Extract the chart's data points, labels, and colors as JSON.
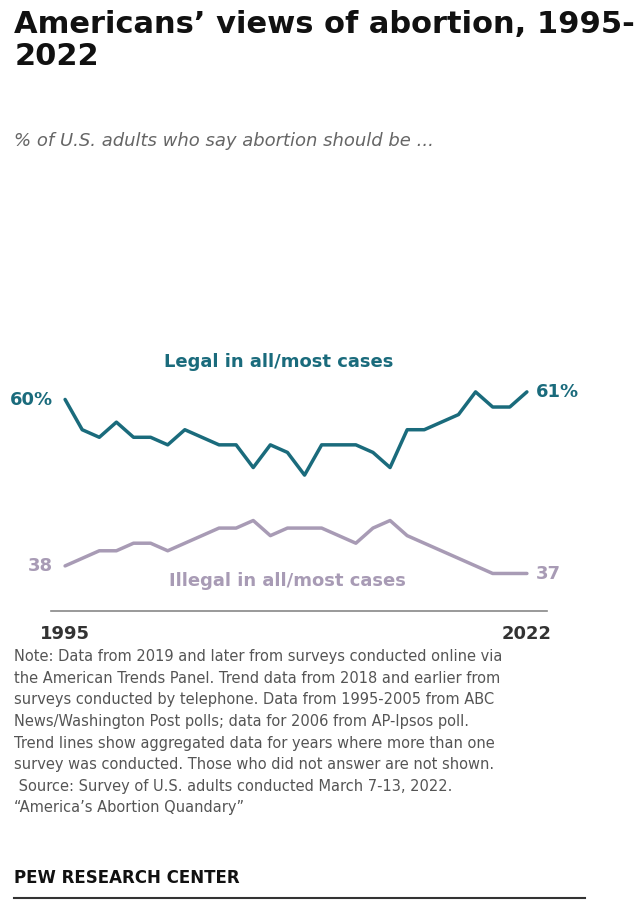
{
  "title": "Americans’ views of abortion, 1995-\n2022",
  "subtitle": "% of U.S. adults who say abortion should be ...",
  "legal_label": "Legal in all/most cases",
  "illegal_label": "Illegal in all/most cases",
  "legal_color": "#1a6b7c",
  "illegal_color": "#a89bb5",
  "legal_start_label": "60%",
  "legal_end_label": "61%",
  "illegal_start_label": "38",
  "illegal_end_label": "37",
  "note_text": "Note: Data from 2019 and later from surveys conducted online via\nthe American Trends Panel. Trend data from 2018 and earlier from\nsurveys conducted by telephone. Data from 1995-2005 from ABC\nNews/Washington Post polls; data for 2006 from AP-Ipsos poll.\nTrend lines show aggregated data for years where more than one\nsurvey was conducted. Those who did not answer are not shown.\n Source: Survey of U.S. adults conducted March 7-13, 2022.\n“America’s Abortion Quandary”",
  "source_label": "PEW RESEARCH CENTER",
  "background_color": "#ffffff",
  "legal_years": [
    1995,
    1996,
    1997,
    1998,
    1999,
    2000,
    2001,
    2002,
    2003,
    2004,
    2005,
    2006,
    2007,
    2008,
    2009,
    2010,
    2011,
    2012,
    2013,
    2014,
    2015,
    2016,
    2017,
    2018,
    2019,
    2020,
    2021,
    2022
  ],
  "legal_values": [
    60,
    56,
    55,
    57,
    55,
    55,
    54,
    56,
    55,
    54,
    54,
    51,
    54,
    53,
    50,
    54,
    54,
    54,
    53,
    51,
    56,
    56,
    57,
    58,
    61,
    59,
    59,
    61
  ],
  "illegal_years": [
    1995,
    1996,
    1997,
    1998,
    1999,
    2000,
    2001,
    2002,
    2003,
    2004,
    2005,
    2006,
    2007,
    2008,
    2009,
    2010,
    2011,
    2012,
    2013,
    2014,
    2015,
    2016,
    2017,
    2018,
    2019,
    2020,
    2021,
    2022
  ],
  "illegal_values": [
    38,
    39,
    40,
    40,
    41,
    41,
    40,
    41,
    42,
    43,
    43,
    44,
    42,
    43,
    43,
    43,
    42,
    41,
    43,
    44,
    42,
    41,
    40,
    39,
    38,
    37,
    37,
    37
  ],
  "xlim": [
    1994.2,
    2023.2
  ],
  "ylim": [
    32,
    73
  ],
  "xtick_labels": [
    "1995",
    "2022"
  ],
  "xtick_positions": [
    1995,
    2022
  ],
  "title_fontsize": 22,
  "subtitle_fontsize": 13,
  "label_fontsize": 13,
  "note_fontsize": 10.5,
  "source_fontsize": 12,
  "line_width": 2.5
}
